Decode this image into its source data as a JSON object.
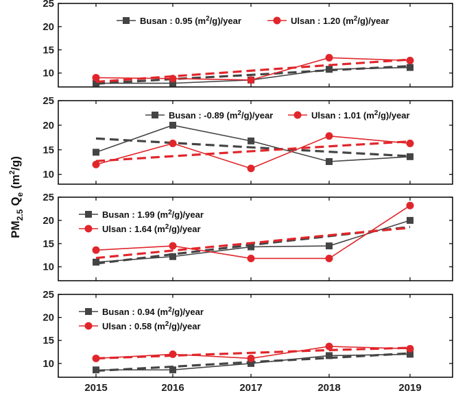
{
  "figure": {
    "ylabel_main": "PM",
    "ylabel_sub": "2.5",
    "ylabel_q": "Q",
    "ylabel_qsub": "e",
    "ylabel_unit_open": "(m",
    "ylabel_unit_sup": "2",
    "ylabel_unit_close": "/g)"
  },
  "colors": {
    "busan": "#444444",
    "ulsan": "#e0262b"
  },
  "chart_data": [
    {
      "type": "line",
      "x": [
        2015,
        2016,
        2017,
        2018,
        2019
      ],
      "ylim": [
        7,
        25
      ],
      "yticks": [
        10,
        15,
        20,
        25
      ],
      "series": [
        {
          "name": "Busan",
          "trend": "0.95 (m²/g)/year",
          "values": [
            7.8,
            7.8,
            8.5,
            10.8,
            11.2
          ],
          "trend_line": [
            7.7,
            8.7,
            9.6,
            10.6,
            11.5
          ]
        },
        {
          "name": "Ulsan",
          "trend": "1.20 (m²/g)/year",
          "values": [
            9.0,
            8.8,
            8.5,
            13.3,
            12.7
          ],
          "trend_line": [
            8.1,
            9.3,
            10.5,
            11.7,
            12.9
          ]
        }
      ]
    },
    {
      "type": "line",
      "x": [
        2015,
        2016,
        2017,
        2018,
        2019
      ],
      "ylim": [
        8,
        25
      ],
      "yticks": [
        10,
        15,
        20,
        25
      ],
      "series": [
        {
          "name": "Busan",
          "trend": "-0.89 (m²/g)/year",
          "values": [
            14.5,
            20.0,
            16.8,
            12.6,
            13.6
          ],
          "trend_line": [
            17.3,
            16.4,
            15.5,
            14.6,
            13.7
          ]
        },
        {
          "name": "Ulsan",
          "trend": "1.01 (m²/g)/year",
          "values": [
            12.0,
            16.3,
            11.2,
            17.8,
            16.3
          ],
          "trend_line": [
            12.7,
            13.7,
            14.7,
            15.7,
            16.7
          ]
        }
      ]
    },
    {
      "type": "line",
      "x": [
        2015,
        2016,
        2017,
        2018,
        2019
      ],
      "ylim": [
        7,
        25
      ],
      "yticks": [
        10,
        15,
        20,
        25
      ],
      "series": [
        {
          "name": "Busan",
          "trend": "1.99 (m²/g)/year",
          "values": [
            11.0,
            12.2,
            14.3,
            14.5,
            20.0
          ],
          "trend_line": [
            10.7,
            12.7,
            14.7,
            16.6,
            18.6
          ]
        },
        {
          "name": "Ulsan",
          "trend": "1.64 (m²/g)/year",
          "values": [
            13.6,
            14.5,
            11.8,
            11.8,
            23.2
          ],
          "trend_line": [
            11.9,
            13.5,
            15.1,
            16.8,
            18.4
          ]
        }
      ]
    },
    {
      "type": "line",
      "x": [
        2015,
        2016,
        2017,
        2018,
        2019
      ],
      "ylim": [
        7,
        25
      ],
      "yticks": [
        10,
        15,
        20,
        25
      ],
      "series": [
        {
          "name": "Busan",
          "trend": "0.94 (m²/g)/year",
          "values": [
            8.6,
            8.6,
            10.0,
            11.7,
            12.0
          ],
          "trend_line": [
            8.4,
            9.3,
            10.3,
            11.2,
            12.2
          ]
        },
        {
          "name": "Ulsan",
          "trend": "0.58 (m²/g)/year",
          "values": [
            11.1,
            12.0,
            11.1,
            13.7,
            13.2
          ],
          "trend_line": [
            11.1,
            11.7,
            12.3,
            12.9,
            13.4
          ]
        }
      ]
    }
  ]
}
